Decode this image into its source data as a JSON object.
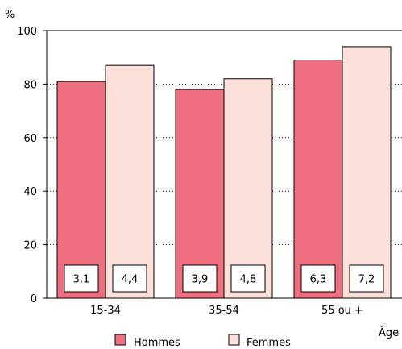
{
  "chart_data": {
    "type": "bar",
    "ylabel": "%",
    "xlabel": "Âge",
    "ylim": [
      0,
      100
    ],
    "yticks": [
      0,
      20,
      40,
      60,
      80,
      100
    ],
    "categories": [
      "15-34",
      "35-54",
      "55 ou +"
    ],
    "series": [
      {
        "name": "Hommes",
        "color": "#ee6f80",
        "values": [
          81,
          78,
          89
        ],
        "labels": [
          "3,1",
          "3,9",
          "6,3"
        ]
      },
      {
        "name": "Femmes",
        "color": "#fde0da",
        "values": [
          87,
          82,
          94
        ],
        "labels": [
          "4,4",
          "4,8",
          "7,2"
        ]
      }
    ],
    "grid": "dotted horizontal",
    "legend": "bottom"
  }
}
